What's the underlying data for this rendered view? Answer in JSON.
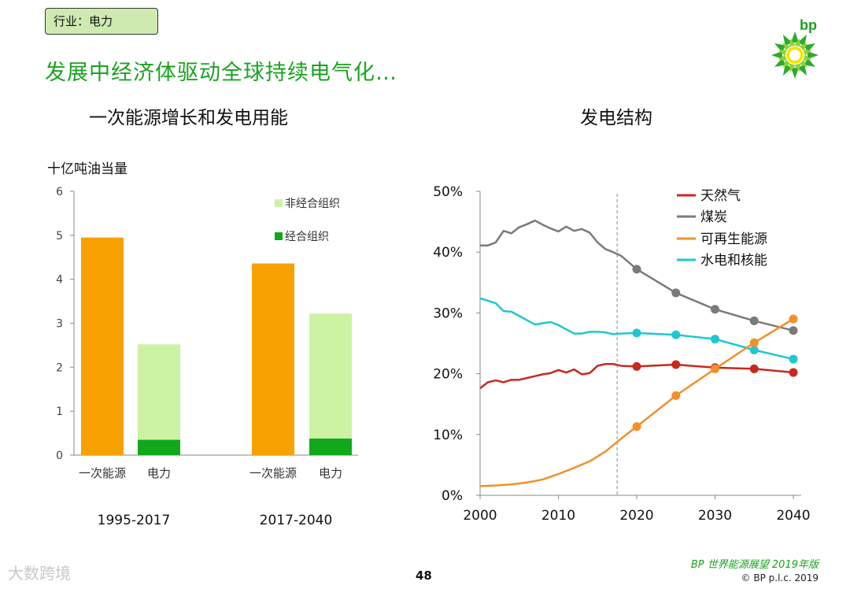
{
  "header": {
    "tag": "行业：电力",
    "title": "发展中经济体驱动全球持续电气化…",
    "logo_text": "bp"
  },
  "footer": {
    "brand": "BP 世界能源展望 2019年版",
    "copyright": "© BP p.l.c. 2019",
    "page_number": "48",
    "watermark": "大数跨境"
  },
  "colors": {
    "orange": "#f7a200",
    "light_green": "#ccf2a4",
    "green": "#11a81b",
    "gas": "#c8281e",
    "coal": "#7a7a7a",
    "renewables": "#f0902a",
    "hydro_nuclear": "#1ec7d2",
    "title_green": "#1aa320"
  },
  "chart_data": [
    {
      "type": "bar",
      "title": "一次能源增长和发电用能",
      "ylabel": "十亿吨油当量",
      "ylim": [
        0,
        6
      ],
      "yticks": [
        0,
        1,
        2,
        3,
        4,
        5,
        6
      ],
      "groups": [
        "1995-2017",
        "2017-2040"
      ],
      "categories": [
        "一次能源",
        "电力",
        "一次能源",
        "电力"
      ],
      "legend": [
        "非经合组织",
        "经合组织"
      ],
      "bars": [
        {
          "group": "1995-2017",
          "category": "一次能源",
          "value": 4.95
        },
        {
          "group": "1995-2017",
          "category": "电力",
          "stack": [
            {
              "name": "经合组织",
              "value": 0.35
            },
            {
              "name": "非经合组织",
              "value": 2.17
            }
          ]
        },
        {
          "group": "2017-2040",
          "category": "一次能源",
          "value": 4.36
        },
        {
          "group": "2017-2040",
          "category": "电力",
          "stack": [
            {
              "name": "经合组织",
              "value": 0.38
            },
            {
              "name": "非经合组织",
              "value": 2.84
            }
          ]
        }
      ]
    },
    {
      "type": "line",
      "title": "发电结构",
      "ylim": [
        0,
        50
      ],
      "yticks": [
        "0%",
        "10%",
        "20%",
        "30%",
        "40%",
        "50%"
      ],
      "xlim": [
        2000,
        2040
      ],
      "xticks": [
        2000,
        2010,
        2020,
        2030,
        2040
      ],
      "projection_start": 2017.5,
      "series": [
        {
          "name": "天然气",
          "color_key": "gas",
          "x": [
            2000,
            2001,
            2002,
            2003,
            2004,
            2005,
            2006,
            2007,
            2008,
            2009,
            2010,
            2011,
            2012,
            2013,
            2014,
            2015,
            2016,
            2017,
            2018,
            2020,
            2025,
            2030,
            2035,
            2040
          ],
          "values": [
            17.6,
            18.6,
            18.9,
            18.6,
            19.0,
            19.0,
            19.3,
            19.6,
            19.9,
            20.1,
            20.6,
            20.2,
            20.7,
            19.9,
            20.1,
            21.3,
            21.6,
            21.6,
            21.3,
            21.2,
            21.5,
            21.0,
            20.8,
            20.2
          ],
          "markers": [
            2020,
            2025,
            2030,
            2035,
            2040
          ]
        },
        {
          "name": "煤炭",
          "color_key": "coal",
          "x": [
            2000,
            2001,
            2002,
            2003,
            2004,
            2005,
            2006,
            2007,
            2008,
            2009,
            2010,
            2011,
            2012,
            2013,
            2014,
            2015,
            2016,
            2017,
            2018,
            2020,
            2025,
            2030,
            2035,
            2040
          ],
          "values": [
            41.1,
            41.1,
            41.6,
            43.5,
            43.1,
            44.1,
            44.6,
            45.2,
            44.5,
            43.9,
            43.4,
            44.2,
            43.5,
            43.8,
            43.2,
            41.6,
            40.5,
            40.0,
            39.4,
            37.2,
            33.3,
            30.6,
            28.7,
            27.1
          ],
          "markers": [
            2020,
            2025,
            2030,
            2035,
            2040
          ]
        },
        {
          "name": "可再生能源",
          "color_key": "renewables",
          "x": [
            2000,
            2002,
            2004,
            2006,
            2008,
            2010,
            2012,
            2014,
            2016,
            2018,
            2020,
            2025,
            2030,
            2035,
            2040
          ],
          "values": [
            1.5,
            1.6,
            1.8,
            2.1,
            2.6,
            3.5,
            4.5,
            5.6,
            7.2,
            9.3,
            11.3,
            16.4,
            20.8,
            25.1,
            29.0
          ],
          "markers": [
            2020,
            2025,
            2030,
            2035,
            2040
          ]
        },
        {
          "name": "水电和核能",
          "color_key": "hydro_nuclear",
          "x": [
            2000,
            2001,
            2002,
            2003,
            2004,
            2005,
            2006,
            2007,
            2008,
            2009,
            2010,
            2011,
            2012,
            2013,
            2014,
            2015,
            2016,
            2017,
            2018,
            2020,
            2025,
            2030,
            2035,
            2040
          ],
          "values": [
            32.4,
            32.0,
            31.6,
            30.3,
            30.2,
            29.5,
            28.8,
            28.1,
            28.3,
            28.5,
            28.0,
            27.3,
            26.6,
            26.6,
            26.9,
            26.9,
            26.8,
            26.5,
            26.6,
            26.7,
            26.4,
            25.7,
            23.9,
            22.4
          ],
          "markers": [
            2020,
            2025,
            2030,
            2035,
            2040
          ]
        }
      ]
    }
  ]
}
